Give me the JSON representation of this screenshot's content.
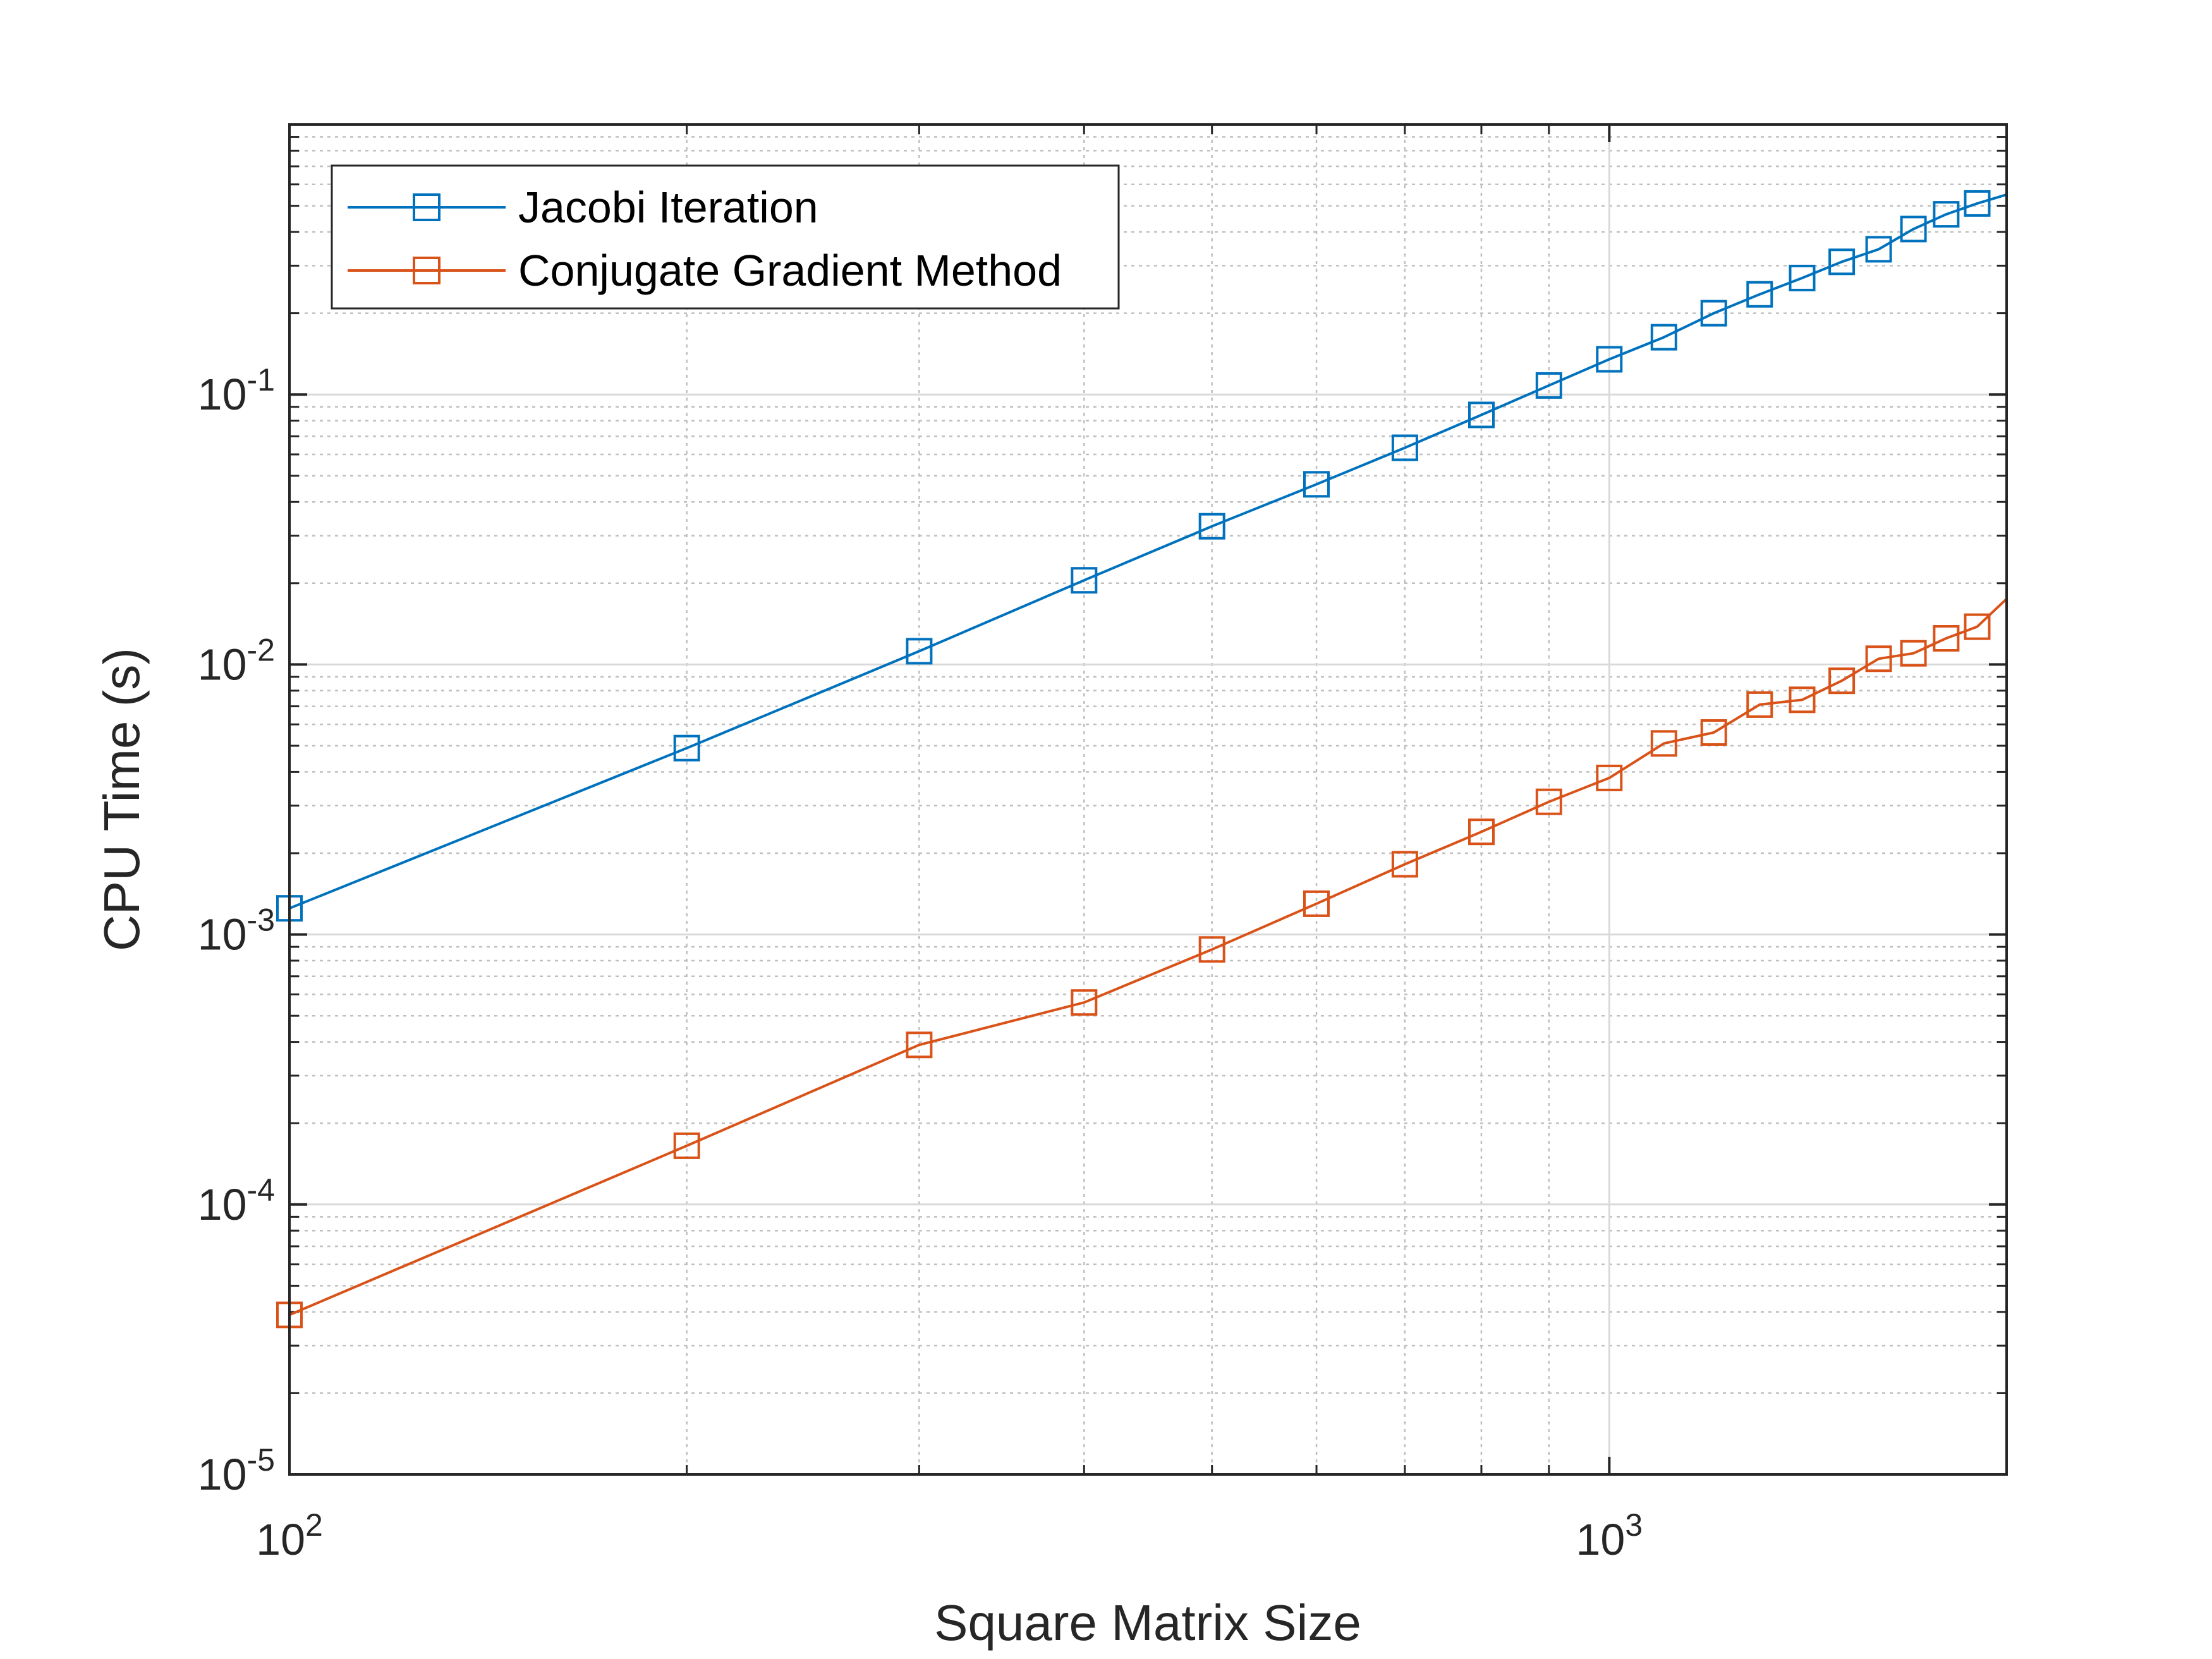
{
  "chart_data": {
    "type": "line",
    "title": "",
    "xlabel": "Square Matrix Size",
    "ylabel": "CPU Time (s)",
    "xscale": "log",
    "yscale": "log",
    "xlim": [
      100,
      2000
    ],
    "ylim": [
      1e-05,
      1
    ],
    "grid": true,
    "legend_position": "top-left",
    "x_ticks": [
      {
        "base": "10",
        "exp": "2"
      },
      {
        "base": "10",
        "exp": "3"
      }
    ],
    "y_ticks": [
      {
        "base": "10",
        "exp": "-5"
      },
      {
        "base": "10",
        "exp": "-4"
      },
      {
        "base": "10",
        "exp": "-3"
      },
      {
        "base": "10",
        "exp": "-2"
      },
      {
        "base": "10",
        "exp": "-1"
      }
    ],
    "x": [
      100,
      200,
      300,
      400,
      500,
      600,
      700,
      800,
      900,
      1000,
      1100,
      1200,
      1300,
      1400,
      1500,
      1600,
      1700,
      1800,
      1900
    ],
    "series": [
      {
        "name": "Jacobi Iteration",
        "color": "#0072BD",
        "marker": "square",
        "values": [
          0.00125,
          0.0049,
          0.0112,
          0.0205,
          0.0325,
          0.0465,
          0.0635,
          0.084,
          0.108,
          0.135,
          0.163,
          0.2,
          0.235,
          0.27,
          0.31,
          0.345,
          0.41,
          0.465,
          0.51
        ],
        "line_end": {
          "x": 2000,
          "y": 0.55
        }
      },
      {
        "name": "Conjugate Gradient Method",
        "color": "#D95319",
        "marker": "square",
        "values": [
          3.9e-05,
          0.000165,
          0.00039,
          0.00056,
          0.00088,
          0.0013,
          0.00182,
          0.0024,
          0.0031,
          0.0038,
          0.0051,
          0.0056,
          0.0071,
          0.0074,
          0.0087,
          0.0105,
          0.011,
          0.0125,
          0.0138
        ],
        "line_end": {
          "x": 2000,
          "y": 0.0175
        }
      }
    ]
  }
}
